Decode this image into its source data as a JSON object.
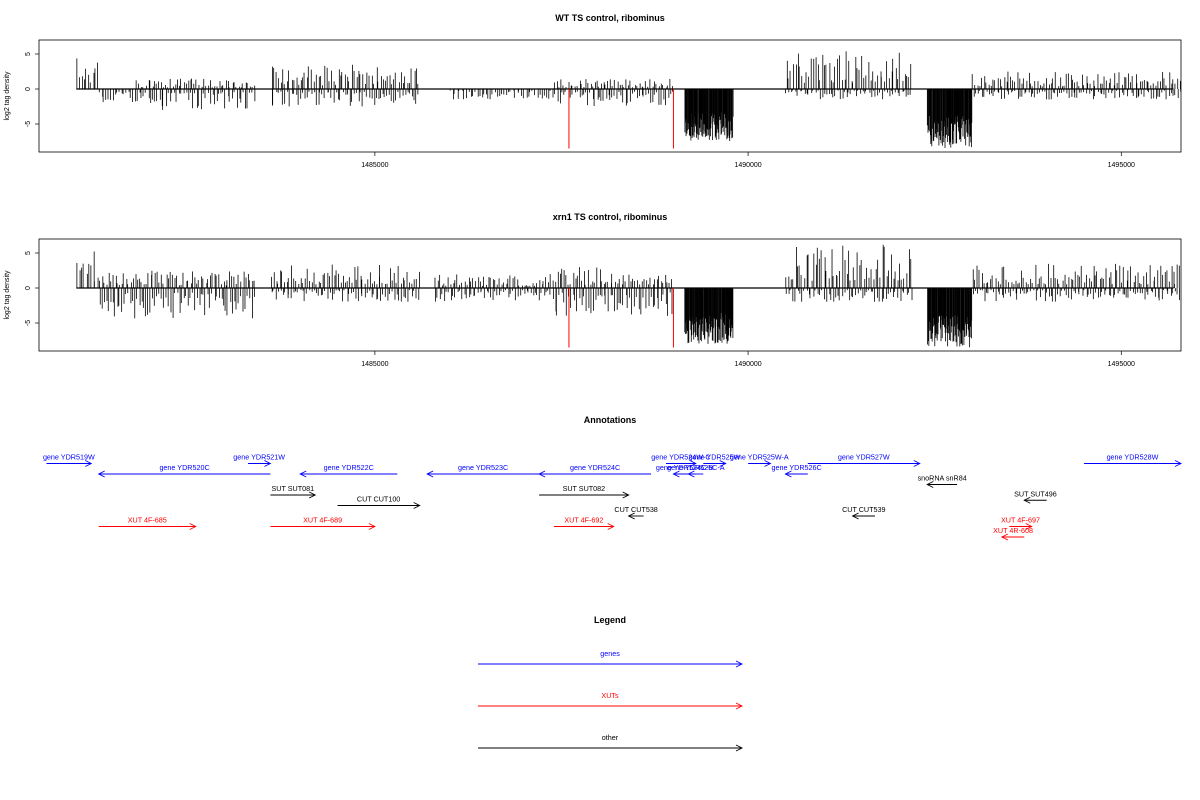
{
  "chart_data": [
    {
      "type": "bar",
      "title": "WT TS control, ribominus",
      "ylabel": "log2 tag density",
      "xlim": [
        1480500,
        1495800
      ],
      "ylim": [
        -9,
        7
      ],
      "yticks": [
        "-5",
        "0",
        "5"
      ],
      "xticks": [
        "1485000",
        "1490000",
        "1495000"
      ],
      "grid": false,
      "red_lines": [
        {
          "x": 1487600,
          "y": -8.5
        },
        {
          "x": 1489000,
          "y": -8.5
        }
      ],
      "segments": [
        {
          "from": 1481000,
          "to": 1481300,
          "y": 5.5
        },
        {
          "from": 1481300,
          "to": 1481800,
          "y": -2.5
        },
        {
          "from": 1481800,
          "to": 1483400,
          "y": -3
        },
        {
          "from": 1481800,
          "to": 1483400,
          "y": 1.5
        },
        {
          "from": 1483600,
          "to": 1485600,
          "y": 3.5
        },
        {
          "from": 1483600,
          "to": 1485600,
          "y": -2.5
        },
        {
          "from": 1486000,
          "to": 1487400,
          "y": -1.5
        },
        {
          "from": 1487400,
          "to": 1489000,
          "y": -2.5
        },
        {
          "from": 1487400,
          "to": 1489000,
          "y": 1.5
        },
        {
          "from": 1489150,
          "to": 1489800,
          "y": -7.5
        },
        {
          "from": 1490500,
          "to": 1492200,
          "y": 5.5
        },
        {
          "from": 1490500,
          "to": 1492200,
          "y": -1.5
        },
        {
          "from": 1492400,
          "to": 1493000,
          "y": -8.5
        },
        {
          "from": 1493000,
          "to": 1495800,
          "y": 2.5
        },
        {
          "from": 1493000,
          "to": 1495800,
          "y": -1.5
        }
      ]
    },
    {
      "type": "bar",
      "title": "xrn1 TS control, ribominus",
      "ylabel": "log2 tag density",
      "xlim": [
        1480500,
        1495800
      ],
      "ylim": [
        -9,
        7
      ],
      "yticks": [
        "-5",
        "0",
        "5"
      ],
      "xticks": [
        "1485000",
        "1490000",
        "1495000"
      ],
      "grid": false,
      "red_lines": [
        {
          "x": 1487600,
          "y": -8.5
        },
        {
          "x": 1489000,
          "y": -8.5
        }
      ],
      "segments": [
        {
          "from": 1481000,
          "to": 1481300,
          "y": 6
        },
        {
          "from": 1481300,
          "to": 1483400,
          "y": -4.5
        },
        {
          "from": 1481300,
          "to": 1483400,
          "y": 2.5
        },
        {
          "from": 1483600,
          "to": 1485600,
          "y": 3.5
        },
        {
          "from": 1483600,
          "to": 1485600,
          "y": -2
        },
        {
          "from": 1485800,
          "to": 1487400,
          "y": 2
        },
        {
          "from": 1485800,
          "to": 1487400,
          "y": -2
        },
        {
          "from": 1487400,
          "to": 1489000,
          "y": -4
        },
        {
          "from": 1487400,
          "to": 1489000,
          "y": 3
        },
        {
          "from": 1489150,
          "to": 1489800,
          "y": -8
        },
        {
          "from": 1490500,
          "to": 1492200,
          "y": 6.5
        },
        {
          "from": 1490500,
          "to": 1492200,
          "y": -2
        },
        {
          "from": 1492400,
          "to": 1493000,
          "y": -8.5
        },
        {
          "from": 1493000,
          "to": 1495800,
          "y": 3.5
        },
        {
          "from": 1493000,
          "to": 1495800,
          "y": -2
        }
      ]
    }
  ],
  "annotations": {
    "title": "Annotations",
    "colors": {
      "genes": "#0000ff",
      "xuts": "#ff0000",
      "other": "#000000"
    },
    "items": [
      {
        "label": "gene YDR519W",
        "strand": "+",
        "start": 1480600,
        "end": 1481200,
        "row": 1,
        "kind": "genes"
      },
      {
        "label": "gene YDR520C",
        "strand": "-",
        "start": 1481300,
        "end": 1483600,
        "row": 2,
        "kind": "genes"
      },
      {
        "label": "gene YDR521W",
        "strand": "+",
        "start": 1483300,
        "end": 1483600,
        "row": 1,
        "kind": "genes"
      },
      {
        "label": "gene YDR522C",
        "strand": "-",
        "start": 1484000,
        "end": 1485300,
        "row": 2,
        "kind": "genes"
      },
      {
        "label": "gene YDR523C",
        "strand": "-",
        "start": 1485700,
        "end": 1487200,
        "row": 2,
        "kind": "genes"
      },
      {
        "label": "gene YDR524C",
        "strand": "-",
        "start": 1487200,
        "end": 1488700,
        "row": 2,
        "kind": "genes"
      },
      {
        "label": "gene YDR524W-C",
        "strand": "+",
        "start": 1488900,
        "end": 1489300,
        "row": 1,
        "kind": "genes"
      },
      {
        "label": "gene YDR525W",
        "strand": "+",
        "start": 1489400,
        "end": 1489700,
        "row": 1,
        "kind": "genes"
      },
      {
        "label": "gene YDR524C-B",
        "strand": "-",
        "start": 1489000,
        "end": 1489300,
        "row": 2,
        "kind": "genes"
      },
      {
        "label": "gene YDR525C-A",
        "strand": "-",
        "start": 1489200,
        "end": 1489400,
        "row": 2,
        "kind": "genes"
      },
      {
        "label": "gene YDR525W-A",
        "strand": "+",
        "start": 1490000,
        "end": 1490300,
        "row": 1,
        "kind": "genes"
      },
      {
        "label": "gene YDR526C",
        "strand": "-",
        "start": 1490500,
        "end": 1490800,
        "row": 2,
        "kind": "genes"
      },
      {
        "label": "gene YDR527W",
        "strand": "+",
        "start": 1490800,
        "end": 1492300,
        "row": 1,
        "kind": "genes"
      },
      {
        "label": "gene YDR528W",
        "strand": "+",
        "start": 1494500,
        "end": 1495800,
        "row": 1,
        "kind": "genes"
      },
      {
        "label": "SUT SUT081",
        "strand": "+",
        "start": 1483600,
        "end": 1484200,
        "row": 4,
        "kind": "other"
      },
      {
        "label": "CUT CUT100",
        "strand": "+",
        "start": 1484500,
        "end": 1485600,
        "row": 5,
        "kind": "other"
      },
      {
        "label": "SUT SUT082",
        "strand": "+",
        "start": 1487200,
        "end": 1488400,
        "row": 4,
        "kind": "other"
      },
      {
        "label": "CUT CUT538",
        "strand": "-",
        "start": 1488400,
        "end": 1488600,
        "row": 6,
        "kind": "other"
      },
      {
        "label": "snoRNA snR84",
        "strand": "-",
        "start": 1492400,
        "end": 1492800,
        "row": 3,
        "kind": "other"
      },
      {
        "label": "SUT SUT496",
        "strand": "-",
        "start": 1493700,
        "end": 1494000,
        "row": 4.5,
        "kind": "other"
      },
      {
        "label": "CUT CUT539",
        "strand": "-",
        "start": 1491400,
        "end": 1491700,
        "row": 6,
        "kind": "other"
      },
      {
        "label": "XUT 4F-685",
        "strand": "+",
        "start": 1481300,
        "end": 1482600,
        "row": 7,
        "kind": "xuts"
      },
      {
        "label": "XUT 4F-689",
        "strand": "+",
        "start": 1483600,
        "end": 1485000,
        "row": 7,
        "kind": "xuts"
      },
      {
        "label": "XUT 4F-692",
        "strand": "+",
        "start": 1487400,
        "end": 1488200,
        "row": 7,
        "kind": "xuts"
      },
      {
        "label": "XUT 4F-697",
        "strand": "+",
        "start": 1493500,
        "end": 1493800,
        "row": 7,
        "kind": "xuts"
      },
      {
        "label": "XUT 4R-608",
        "strand": "-",
        "start": 1493400,
        "end": 1493700,
        "row": 8,
        "kind": "xuts"
      }
    ]
  },
  "legend": {
    "title": "Legend",
    "entries": [
      {
        "label": "genes",
        "color": "#0000ff"
      },
      {
        "label": "XUTs",
        "color": "#ff0000"
      },
      {
        "label": "other",
        "color": "#000000"
      }
    ]
  }
}
